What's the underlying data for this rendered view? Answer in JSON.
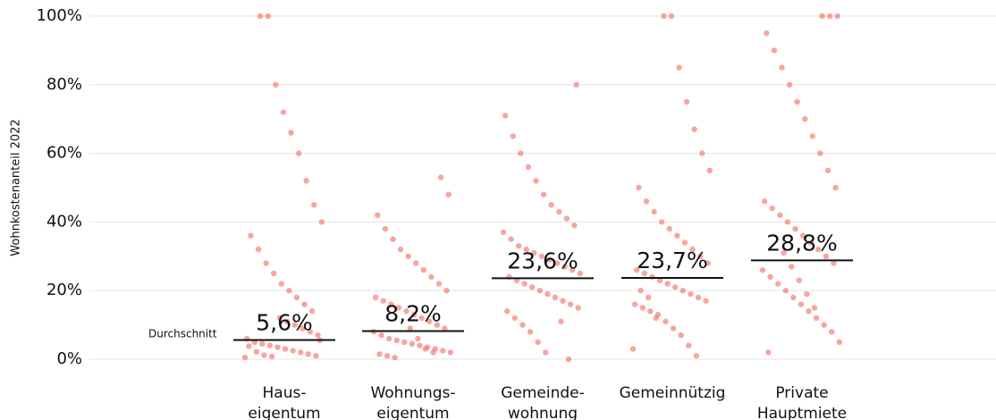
{
  "chart_data": {
    "type": "strip",
    "y_label": "Wohnkostenanteil 2022",
    "annotation": "Durchschnitt",
    "categories": [
      [
        "Haus-",
        "eigentum"
      ],
      [
        "Wohnungs-",
        "eigentum"
      ],
      [
        "Gemeinde-",
        "wohnung"
      ],
      [
        "Gemeinnützig"
      ],
      [
        "Private",
        "Hauptmiete"
      ]
    ],
    "values": [
      5.6,
      8.2,
      23.6,
      23.7,
      28.8
    ],
    "value_labels": [
      "5,6%",
      "8,2%",
      "23,6%",
      "23,7%",
      "28,8%"
    ],
    "points": [
      [
        0.5,
        1,
        1.5,
        2,
        2.5,
        3,
        3.5,
        4,
        4.5,
        5,
        6,
        7,
        8,
        9,
        10,
        11,
        12,
        0.8,
        1.2,
        2.2,
        3.8,
        5.5,
        14,
        16,
        18,
        20,
        22,
        25,
        28,
        32,
        36,
        40,
        45,
        52,
        60,
        66,
        72,
        80,
        100,
        100
      ],
      [
        0.5,
        1,
        1.5,
        2,
        2.5,
        3,
        3.5,
        4,
        4.5,
        5,
        5.5,
        6,
        7,
        8,
        9,
        10,
        11,
        12,
        13,
        14,
        15,
        16,
        17,
        18,
        20,
        22,
        24,
        26,
        28,
        30,
        32,
        35,
        38,
        42,
        48,
        53,
        2,
        3,
        6,
        9
      ],
      [
        2,
        5,
        8,
        10,
        12,
        14,
        15,
        16,
        17,
        18,
        19,
        20,
        21,
        22,
        23,
        24,
        25,
        26,
        27,
        28,
        29,
        30,
        31,
        32,
        33,
        35,
        37,
        39,
        41,
        43,
        45,
        48,
        52,
        56,
        60,
        65,
        71,
        80,
        0,
        11
      ],
      [
        1,
        4,
        7,
        9,
        11,
        13,
        14,
        15,
        16,
        17,
        18,
        19,
        20,
        21,
        22,
        23,
        24,
        25,
        26,
        28,
        30,
        32,
        34,
        36,
        38,
        40,
        43,
        46,
        50,
        55,
        60,
        67,
        75,
        85,
        100,
        100,
        12,
        18,
        20,
        3
      ],
      [
        2,
        5,
        8,
        10,
        12,
        14,
        16,
        18,
        20,
        22,
        24,
        26,
        28,
        30,
        32,
        34,
        36,
        38,
        40,
        42,
        44,
        46,
        50,
        55,
        60,
        65,
        70,
        75,
        80,
        85,
        90,
        95,
        100,
        100,
        100,
        15,
        19,
        23,
        27,
        31
      ]
    ],
    "color": "#f4746c",
    "ylim": [
      0,
      100
    ],
    "yticks": [
      {
        "value": 0,
        "label": "0%"
      },
      {
        "value": 20,
        "label": "20%"
      },
      {
        "value": 40,
        "label": "40%"
      },
      {
        "value": 60,
        "label": "60%"
      },
      {
        "value": 80,
        "label": "80%"
      },
      {
        "value": 100,
        "label": "100%"
      }
    ],
    "grid": true
  }
}
